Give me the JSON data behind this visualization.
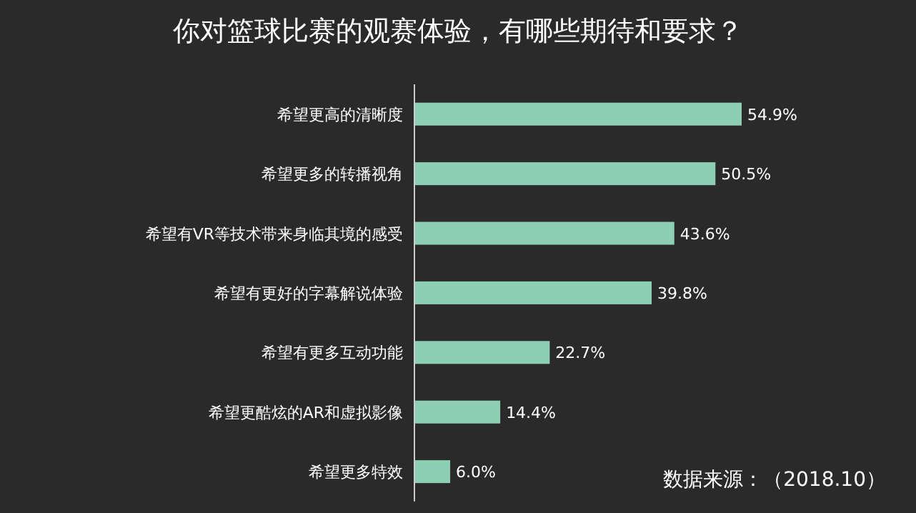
{
  "chart_data": {
    "type": "bar",
    "orientation": "horizontal",
    "title": "你对篮球比赛的观赛体验，有哪些期待和要求？",
    "categories": [
      "希望更高的清晰度",
      "希望更多的转播视角",
      "希望有VR等技术带来身临其境的感受",
      "希望有更好的字幕解说体验",
      "希望有更多互动功能",
      "希望更酷炫的AR和虚拟影像",
      "希望更多特效"
    ],
    "values": [
      54.9,
      50.5,
      43.6,
      39.8,
      22.7,
      14.4,
      6.0
    ],
    "value_labels": [
      "54.9%",
      "50.5%",
      "43.6%",
      "39.8%",
      "22.7%",
      "14.4%",
      "6.0%"
    ],
    "color": "#8dcfb5",
    "annotations": [
      "数据来源：（2018.10）"
    ]
  }
}
